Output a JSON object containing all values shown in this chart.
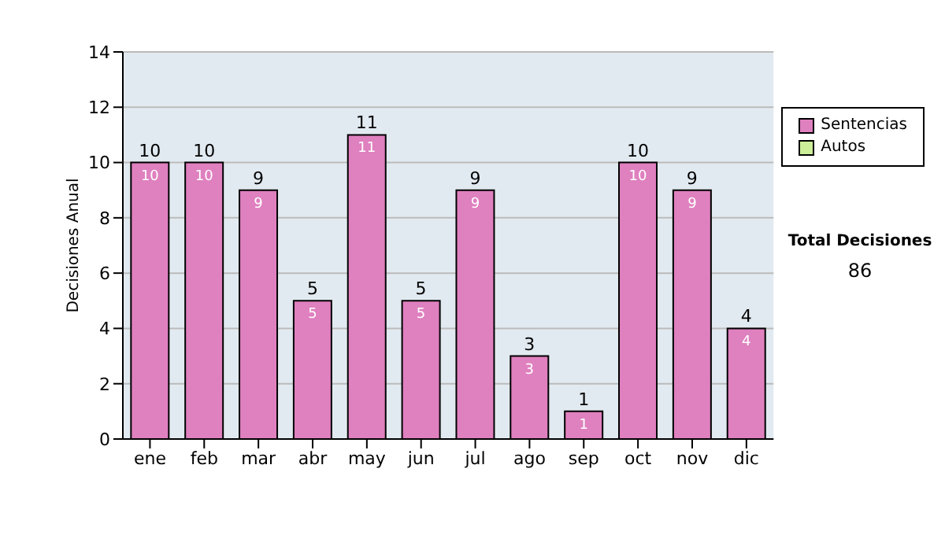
{
  "chart_data": {
    "type": "bar",
    "ylabel": "Decisiones Anual",
    "categories": [
      "ene",
      "feb",
      "mar",
      "abr",
      "may",
      "jun",
      "jul",
      "ago",
      "sep",
      "oct",
      "nov",
      "dic"
    ],
    "series": [
      {
        "name": "Sentencias",
        "color": "#df80bf",
        "values": [
          10,
          10,
          9,
          5,
          11,
          5,
          9,
          3,
          1,
          10,
          9,
          4
        ],
        "value_labels": [
          "10",
          "10",
          "9",
          "5",
          "11",
          "5",
          "9",
          "3",
          "1",
          "10",
          "9",
          "4"
        ]
      },
      {
        "name": "Autos",
        "color": "#ccee99",
        "values": [
          0,
          0,
          0,
          0,
          0,
          0,
          0,
          0,
          0,
          0,
          0,
          0
        ],
        "value_labels": [
          null,
          null,
          null,
          null,
          null,
          null,
          null,
          null,
          null,
          null,
          null,
          null
        ]
      }
    ],
    "stacked": true,
    "totals": [
      "10",
      "10",
      "9",
      "5",
      "11",
      "5",
      "9",
      "3",
      "1",
      "10",
      "9",
      "4"
    ],
    "ylim": [
      0,
      14
    ],
    "yticks": [
      0,
      2,
      4,
      6,
      8,
      10,
      12,
      14
    ],
    "grid": "y",
    "legend": "right",
    "annotations": [
      "Total Decisiones",
      "86"
    ]
  }
}
